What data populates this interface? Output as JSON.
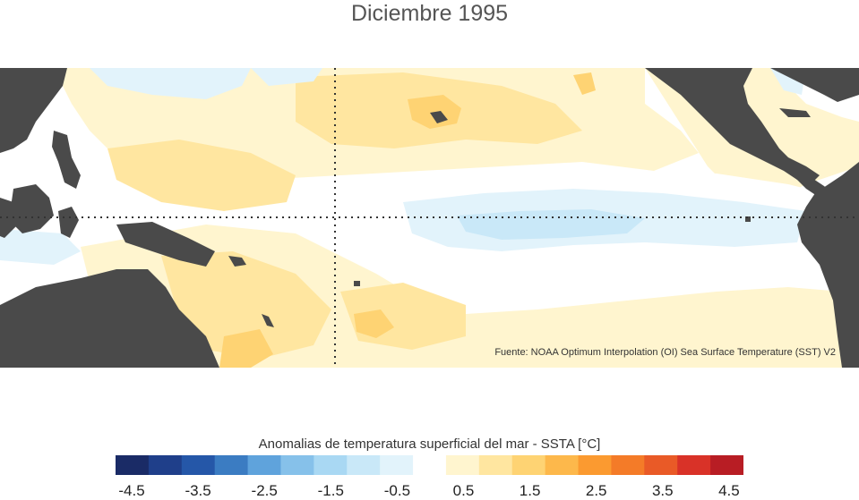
{
  "title": "Diciembre 1995",
  "source": "Fuente: NOAA Optimum Interpolation (OI) Sea Surface Temperature (SST) V2",
  "legend": {
    "title": "Anomalias de temperatura superficial del mar - SSTA  [°C]",
    "ticks": [
      "-4.5",
      "-3.5",
      "-2.5",
      "-1.5",
      "-0.5",
      "0.5",
      "1.5",
      "2.5",
      "3.5",
      "4.5"
    ],
    "colors": [
      "#1a2b66",
      "#1f3f8a",
      "#2557a8",
      "#3b7cc2",
      "#5fa3dc",
      "#86c1ea",
      "#a9d8f3",
      "#c9e8f8",
      "#e2f3fb",
      "#ffffff",
      "#fff5cf",
      "#ffe6a0",
      "#fed373",
      "#fdb84b",
      "#fb9a30",
      "#f47b28",
      "#e95a27",
      "#d93228",
      "#b81d24"
    ]
  },
  "colors": {
    "land": "#4a4a4a",
    "ocean_neutral": "#ffffff",
    "warm_weak": "#fff5cf",
    "warm_mid": "#ffe6a0",
    "warm_strong": "#fed373",
    "cool_weak": "#e2f3fb",
    "cool_mid": "#c9e8f8"
  }
}
